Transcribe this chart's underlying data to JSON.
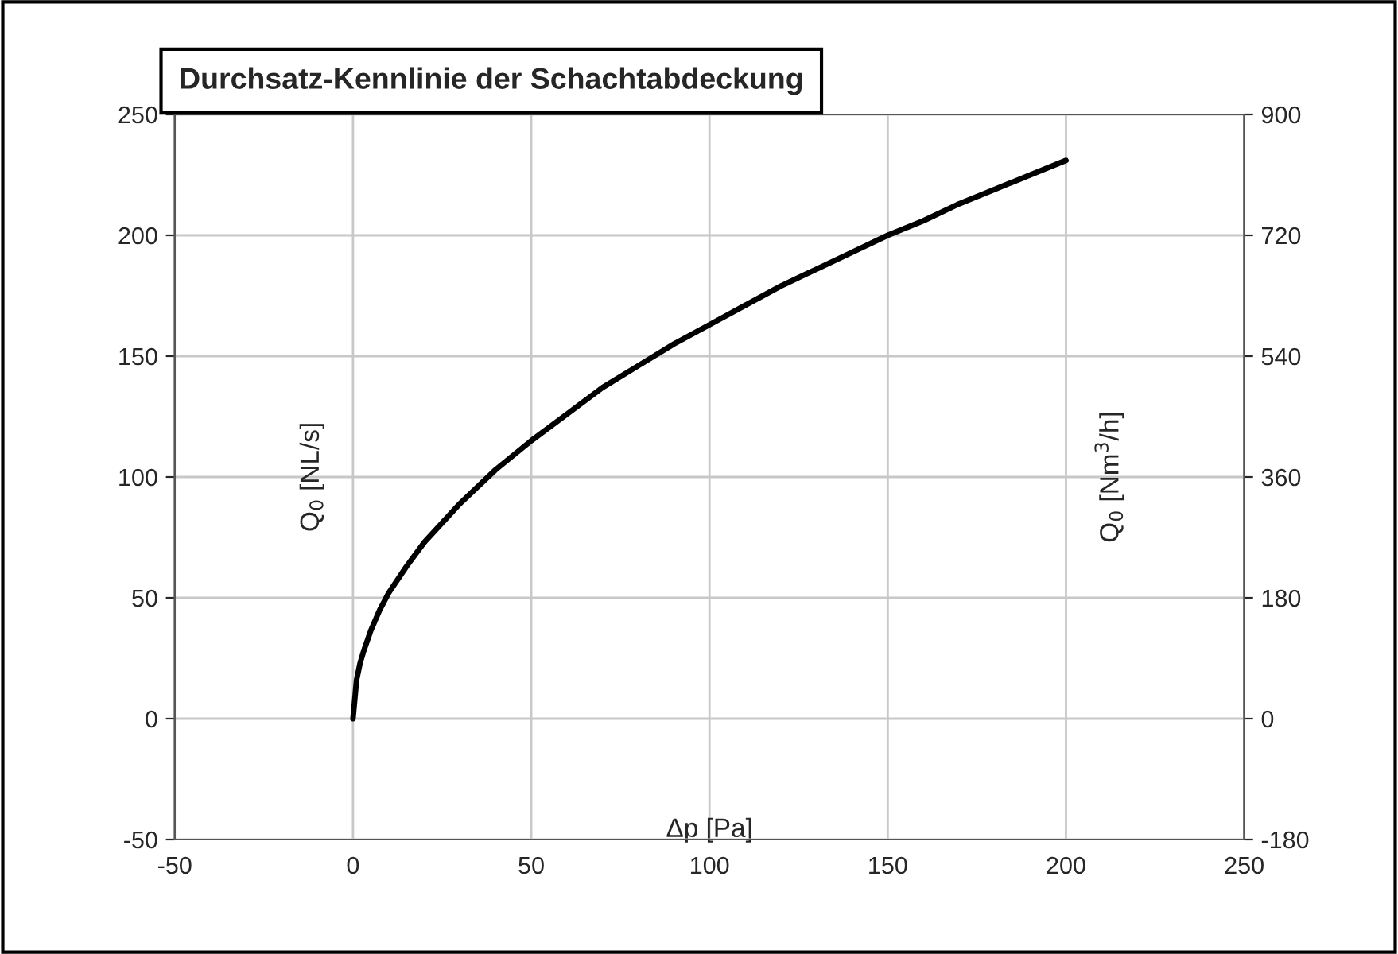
{
  "chart_data": {
    "type": "line",
    "title": "Durchsatz-Kennlinie der Schachtabdeckung",
    "xlabel": "Δp [Pa]",
    "ylabel": "Q$_{0}$ [NL/s]",
    "y2label": "Q$_{0}$ [Nm$^{3}$/h]",
    "x": [
      0,
      1,
      2,
      3,
      5,
      7.5,
      10,
      15,
      20,
      30,
      40,
      50,
      60,
      70,
      80,
      90,
      100,
      110,
      120,
      130,
      140,
      150,
      160,
      170,
      180,
      190,
      200
    ],
    "series": [
      {
        "color": "#000000",
        "values": [
          0,
          16,
          23,
          28,
          36.5,
          45,
          52,
          63,
          73,
          89,
          103,
          115,
          126,
          137,
          146,
          155,
          163,
          171,
          179,
          186,
          193,
          200,
          206,
          213,
          219,
          225,
          231
        ]
      }
    ],
    "xlim": [
      -50,
      250
    ],
    "xticks": [
      -50,
      0,
      50,
      100,
      150,
      200,
      250
    ],
    "ylim": [
      -50,
      250
    ],
    "yticks": [
      -50,
      0,
      50,
      100,
      150,
      200,
      250
    ],
    "y2lim": [
      -180,
      900
    ],
    "y2ticks": [
      -180,
      0,
      180,
      360,
      540,
      720,
      900
    ],
    "grid": true,
    "marker": "none",
    "line_style": "solid"
  }
}
